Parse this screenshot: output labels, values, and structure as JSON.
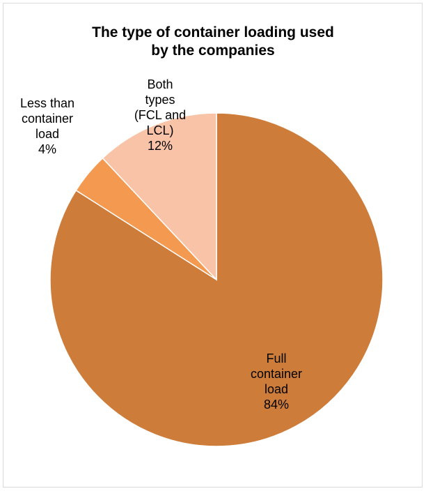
{
  "chart_data": {
    "type": "pie",
    "title_lines": [
      "The type of container loading used",
      "by the companies"
    ],
    "slices": [
      {
        "label_lines": [
          "Full",
          "container",
          "load"
        ],
        "value": 84,
        "value_label": "84%",
        "color": "#cd7c3a"
      },
      {
        "label_lines": [
          "Less than",
          "container",
          "load"
        ],
        "value": 4,
        "value_label": "4%",
        "color": "#f39a50"
      },
      {
        "label_lines": [
          "Both",
          "types",
          "(FCL and",
          "LCL)"
        ],
        "value": 12,
        "value_label": "12%",
        "color": "#f9c3a8"
      }
    ],
    "legend": "none"
  }
}
